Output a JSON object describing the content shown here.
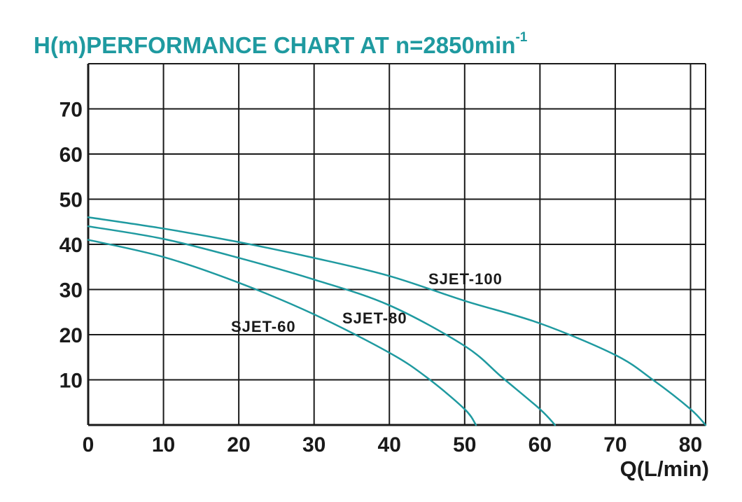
{
  "chart_data": {
    "type": "line",
    "title_main": "H(m)PERFORMANCE CHART AT n=2850min",
    "title_superscript": "-1",
    "xlabel": "Q(L/min)",
    "ylabel": "",
    "xlim": [
      0,
      82
    ],
    "ylim": [
      0,
      80
    ],
    "grid": true,
    "x_ticks": [
      0,
      10,
      20,
      30,
      40,
      50,
      60,
      70,
      80
    ],
    "y_ticks": [
      10,
      20,
      30,
      40,
      50,
      60,
      70
    ],
    "x_tick_labels": [
      "0",
      "10",
      "20",
      "30",
      "40",
      "50",
      "60",
      "70",
      "80"
    ],
    "y_tick_labels": [
      "10",
      "20",
      "30",
      "40",
      "50",
      "60",
      "70"
    ],
    "x_gridlines": [
      0,
      10,
      20,
      30,
      40,
      50,
      60,
      70,
      80,
      82
    ],
    "y_gridlines": [
      0,
      10,
      20,
      30,
      40,
      50,
      60,
      70,
      80
    ],
    "line_color": "#1f9aa0",
    "title_color": "#1f9aa0",
    "series": [
      {
        "name": "SJET-60",
        "x": [
          0,
          10,
          20,
          30,
          40,
          45,
          50,
          51.5
        ],
        "y": [
          41,
          37.2,
          31.5,
          24.5,
          16,
          10.5,
          3.5,
          0
        ]
      },
      {
        "name": "SJET-80",
        "x": [
          0,
          10,
          20,
          30,
          40,
          50,
          55,
          60,
          62
        ],
        "y": [
          44,
          41.2,
          37,
          32.2,
          26.5,
          17.5,
          10.5,
          3.5,
          0
        ]
      },
      {
        "name": "SJET-100",
        "x": [
          0,
          10,
          20,
          30,
          40,
          50,
          60,
          70,
          75,
          80,
          82
        ],
        "y": [
          46,
          43.5,
          40.5,
          37,
          33,
          27.5,
          22.5,
          15.5,
          10,
          3.5,
          0
        ]
      }
    ]
  }
}
